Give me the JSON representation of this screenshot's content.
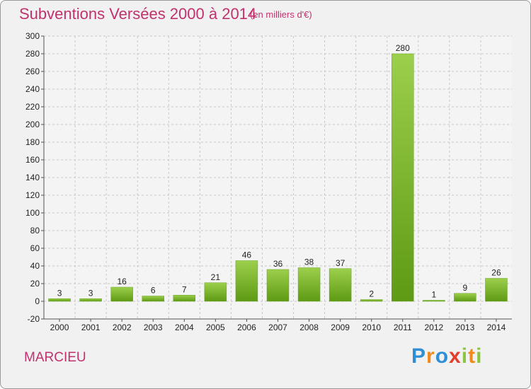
{
  "header": {
    "title": "Subventions Versées 2000 à 2014",
    "unit": "(en milliers d'€)"
  },
  "footer": {
    "commune": "MARCIEU",
    "logo_text": "Proxiti"
  },
  "colors": {
    "title": "#c0326e",
    "bar_top": "#9ccf4c",
    "bar_bottom": "#5e9a14",
    "grid": "#c8c8c8",
    "background": "#f1f1f1"
  },
  "chart_data": {
    "type": "bar",
    "categories": [
      "2000",
      "2001",
      "2002",
      "2003",
      "2004",
      "2005",
      "2006",
      "2007",
      "2008",
      "2009",
      "2010",
      "2011",
      "2012",
      "2013",
      "2014"
    ],
    "values": [
      3,
      3,
      16,
      6,
      7,
      21,
      46,
      36,
      38,
      37,
      2,
      280,
      1,
      9,
      26
    ],
    "y_ticks": [
      -20,
      0,
      20,
      40,
      60,
      80,
      100,
      120,
      140,
      160,
      180,
      200,
      220,
      240,
      260,
      280,
      300
    ],
    "ylim": [
      -20,
      300
    ],
    "grid": true
  }
}
